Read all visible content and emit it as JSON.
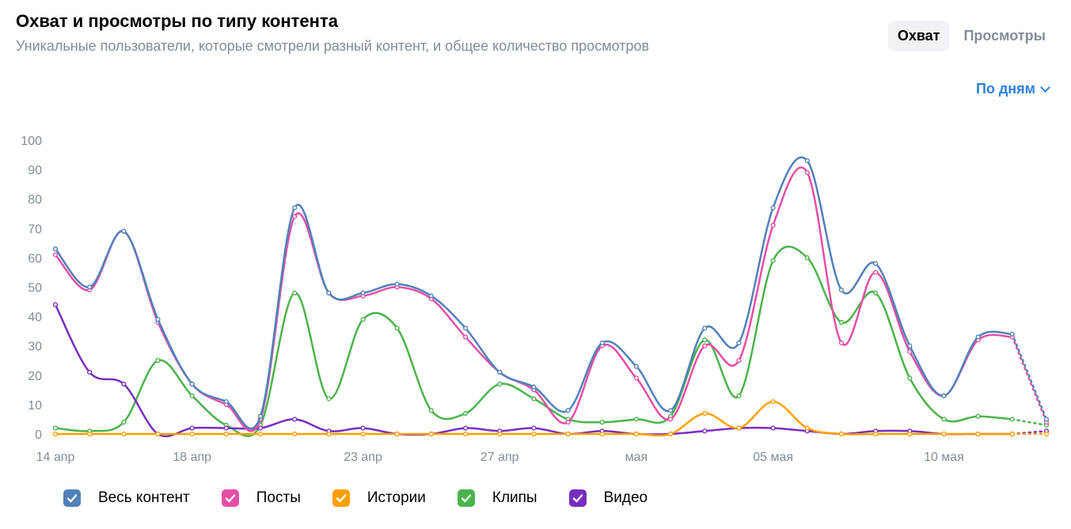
{
  "header": {
    "title": "Охват и просмотры по типу контента",
    "subtitle": "Уникальные пользователи, которые смотрели разный контент, и общее количество просмотров"
  },
  "tabs": [
    {
      "label": "Охват",
      "active": true
    },
    {
      "label": "Просмотры",
      "active": false
    }
  ],
  "period_selector": {
    "label": "По дням",
    "icon": "chevron-down-icon"
  },
  "chart_data": {
    "type": "line",
    "ylim": [
      0,
      100
    ],
    "yticks": [
      0,
      10,
      20,
      30,
      40,
      50,
      60,
      70,
      80,
      90,
      100
    ],
    "x_labels": [
      {
        "index": 0,
        "text": "14 апр"
      },
      {
        "index": 4,
        "text": "18 апр"
      },
      {
        "index": 9,
        "text": "23 апр"
      },
      {
        "index": 13,
        "text": "27 апр"
      },
      {
        "index": 17,
        "text": "мая"
      },
      {
        "index": 21,
        "text": "05 мая"
      },
      {
        "index": 26,
        "text": "10 мая"
      }
    ],
    "point_count": 30,
    "dashed_from_index": 28,
    "grid": false,
    "series": [
      {
        "name": "Весь контент",
        "color": "#5181b8",
        "values": [
          63,
          50,
          69,
          39,
          17,
          11,
          6,
          77,
          48,
          48,
          51,
          47,
          36,
          21,
          16,
          8,
          31,
          23,
          8,
          36,
          31,
          77,
          93,
          49,
          58,
          30,
          13,
          33,
          34,
          5
        ]
      },
      {
        "name": "Посты",
        "color": "#e64fa5",
        "values": [
          61,
          49,
          69,
          38,
          17,
          10,
          5,
          74,
          48,
          47,
          50,
          46,
          33,
          21,
          15,
          4,
          30,
          19,
          5,
          30,
          25,
          71,
          89,
          31,
          55,
          28,
          13,
          32,
          33,
          4
        ]
      },
      {
        "name": "Истории",
        "color": "#ffa000",
        "values": [
          0,
          0,
          0,
          0,
          0,
          0,
          0,
          0,
          0,
          0,
          0,
          0,
          0,
          0,
          0,
          0,
          0,
          0,
          0,
          7,
          2,
          11,
          2,
          0,
          0,
          0,
          0,
          0,
          0,
          0
        ]
      },
      {
        "name": "Клипы",
        "color": "#4bb34b",
        "values": [
          2,
          1,
          4,
          25,
          13,
          3,
          3,
          48,
          12,
          39,
          36,
          8,
          7,
          17,
          12,
          5,
          4,
          5,
          6,
          32,
          13,
          59,
          60,
          38,
          48,
          19,
          5,
          6,
          5,
          3
        ]
      },
      {
        "name": "Видео",
        "color": "#792ec0",
        "values": [
          44,
          21,
          17,
          0,
          2,
          2,
          2,
          5,
          1,
          2,
          0,
          0,
          2,
          1,
          2,
          0,
          1,
          0,
          0,
          1,
          2,
          2,
          1,
          0,
          1,
          1,
          0,
          0,
          0,
          1
        ]
      }
    ]
  }
}
